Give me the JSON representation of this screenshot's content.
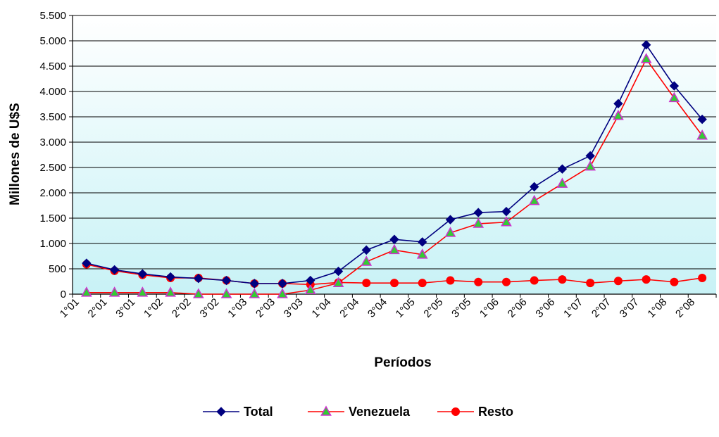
{
  "chart_data": {
    "type": "line",
    "categories": [
      "1°01",
      "2°01",
      "3°01",
      "1°02",
      "2°02",
      "3°02",
      "1°03",
      "2°03",
      "3°03",
      "1°04",
      "2°04",
      "3°04",
      "1°05",
      "2°05",
      "3°05",
      "1°06",
      "2°06",
      "3°06",
      "1°07",
      "2°07",
      "3°07",
      "1°08",
      "2°08"
    ],
    "xlabel": "Períodos",
    "ylabel": "Millones de U$S",
    "ylim": [
      0,
      5500
    ],
    "yticks": [
      0,
      500,
      1000,
      1500,
      2000,
      2500,
      3000,
      3500,
      4000,
      4500,
      5000,
      5500
    ],
    "ytick_labels": [
      "0",
      "500",
      "1.000",
      "1.500",
      "2.000",
      "2.500",
      "3.000",
      "3.500",
      "4.000",
      "4.500",
      "5.000",
      "5.500"
    ],
    "grid": true,
    "legend_position": "bottom",
    "series": [
      {
        "name": "Total",
        "color": "#000080",
        "marker": "diamond",
        "values": [
          610,
          480,
          400,
          340,
          310,
          270,
          210,
          210,
          270,
          450,
          870,
          1080,
          1030,
          1470,
          1610,
          1630,
          2120,
          2470,
          2730,
          3760,
          4920,
          4110,
          3450
        ]
      },
      {
        "name": "Venezuela",
        "color": "#ff0000",
        "marker": "triangle",
        "values": [
          30,
          30,
          30,
          30,
          0,
          0,
          0,
          0,
          80,
          220,
          640,
          870,
          780,
          1210,
          1390,
          1420,
          1840,
          2180,
          2520,
          3520,
          4640,
          3870,
          3130
        ]
      },
      {
        "name": "Resto",
        "color": "#ff0000",
        "marker": "circle",
        "values": [
          590,
          460,
          380,
          320,
          320,
          270,
          210,
          210,
          190,
          230,
          220,
          220,
          220,
          270,
          240,
          240,
          270,
          290,
          220,
          260,
          290,
          240,
          320
        ]
      }
    ]
  }
}
